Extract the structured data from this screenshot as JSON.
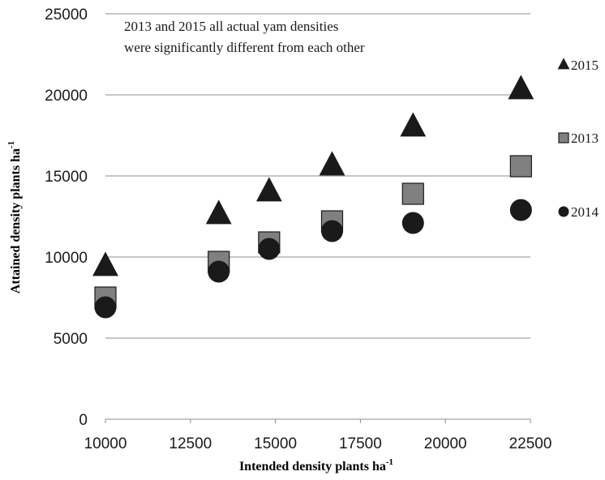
{
  "chart_data": {
    "type": "scatter",
    "x_label": {
      "main": "Intended density plants ha",
      "superscript": "-1"
    },
    "y_label": {
      "main": "Attained density plants ha",
      "superscript": "-1"
    },
    "annotation": [
      "2013 and 2015 all actual yam densities",
      "were significantly different from each other"
    ],
    "xlim": [
      10000,
      22500
    ],
    "ylim": [
      0,
      25000
    ],
    "x_ticks": [
      "10000",
      "12500",
      "15000",
      "17500",
      "20000",
      "22500"
    ],
    "y_ticks": [
      "0",
      "5000",
      "10000",
      "15000",
      "20000",
      "25000"
    ],
    "horizontal_grid": true,
    "legend_position": "right",
    "series": [
      {
        "name": "2015",
        "marker": "triangle",
        "color": "#1a1a1a",
        "points": [
          [
            10000,
            9400
          ],
          [
            13333,
            12600
          ],
          [
            14815,
            14000
          ],
          [
            16667,
            15600
          ],
          [
            19048,
            18000
          ],
          [
            22222,
            20300
          ]
        ]
      },
      {
        "name": "2013",
        "marker": "square",
        "color": "#808080",
        "points": [
          [
            10000,
            7500
          ],
          [
            13333,
            9700
          ],
          [
            14815,
            10900
          ],
          [
            16667,
            12200
          ],
          [
            19048,
            13900
          ],
          [
            22222,
            15600
          ]
        ]
      },
      {
        "name": "2014",
        "marker": "circle",
        "color": "#1a1a1a",
        "points": [
          [
            10000,
            6900
          ],
          [
            13333,
            9100
          ],
          [
            14815,
            10500
          ],
          [
            16667,
            11600
          ],
          [
            19048,
            12100
          ],
          [
            22222,
            12900
          ]
        ]
      }
    ]
  }
}
